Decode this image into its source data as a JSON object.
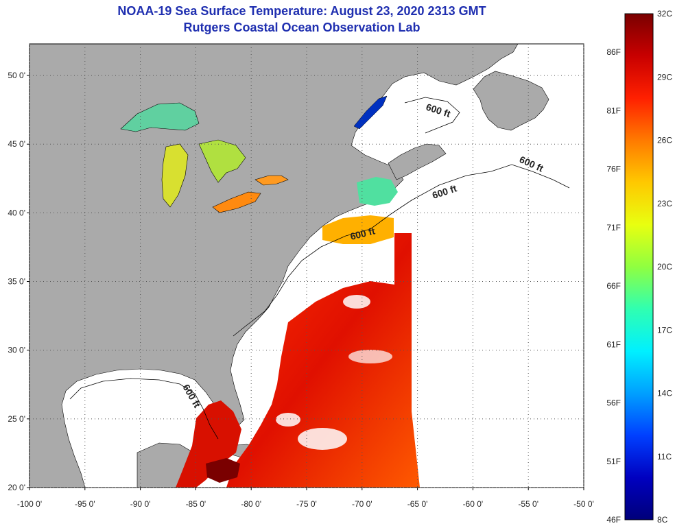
{
  "title_line1": "NOAA-19 Sea Surface Temperature:  August 23, 2020 2313 GMT",
  "title_line2": "Rutgers Coastal Ocean Observation Lab",
  "lat_ticks": [
    {
      "value": 50,
      "label": "50 0'"
    },
    {
      "value": 45,
      "label": "45 0'"
    },
    {
      "value": 40,
      "label": "40 0'"
    },
    {
      "value": 35,
      "label": "35 0'"
    },
    {
      "value": 30,
      "label": "30 0'"
    },
    {
      "value": 25,
      "label": "25 0'"
    },
    {
      "value": 20,
      "label": "20 0'"
    }
  ],
  "lon_ticks": [
    {
      "value": -100,
      "label": "-100 0'"
    },
    {
      "value": -95,
      "label": "-95 0'"
    },
    {
      "value": -90,
      "label": "-90 0'"
    },
    {
      "value": -85,
      "label": "-85 0'"
    },
    {
      "value": -80,
      "label": "-80 0'"
    },
    {
      "value": -75,
      "label": "-75 0'"
    },
    {
      "value": -70,
      "label": "-70 0'"
    },
    {
      "value": -65,
      "label": "-65 0'"
    },
    {
      "value": -60,
      "label": "-60 0'"
    },
    {
      "value": -55,
      "label": "-55 0'"
    },
    {
      "value": -50,
      "label": "-50 0'"
    }
  ],
  "contour_label": "600 ft",
  "colorbar": {
    "celsius_labels": [
      "32C",
      "29C",
      "26C",
      "23C",
      "20C",
      "17C",
      "14C",
      "11C",
      "8C"
    ],
    "fahrenheit_labels": [
      "86F",
      "81F",
      "76F",
      "71F",
      "66F",
      "61F",
      "56F",
      "51F",
      "46F"
    ],
    "colors": [
      "#7a0000",
      "#c80000",
      "#ff2000",
      "#ff7a00",
      "#ffc800",
      "#e8ff10",
      "#90ff40",
      "#30ffb0",
      "#00f0ff",
      "#00a0ff",
      "#0040ff",
      "#0000c0",
      "#00007a"
    ]
  },
  "colors": {
    "land": "#aaaaaa",
    "ocean_nodata": "#ffffff",
    "title": "#1f2fb0"
  }
}
